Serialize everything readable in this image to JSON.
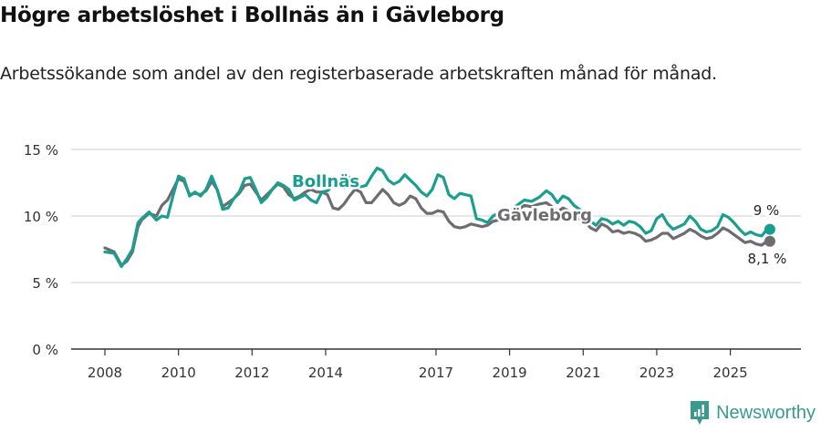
{
  "header": {
    "title": "Högre arbetslöshet i Bollnäs än i Gävleborg",
    "subtitle": "Arbetssökande som andel av den registerbaserade arbetskraften månad för månad."
  },
  "brand": {
    "name": "Newsworthy",
    "color": "#3a9a8e"
  },
  "chart_data": {
    "type": "line",
    "title": "Högre arbetslöshet i Bollnäs än i Gävleborg",
    "subtitle": "Arbetssökande som andel av den registerbaserade arbetskraften månad för månad.",
    "xlabel": "",
    "ylabel": "",
    "ylim": [
      0,
      15
    ],
    "y_ticks": [
      "0 %",
      "5 %",
      "10 %",
      "15 %"
    ],
    "y_tick_values": [
      0,
      5,
      10,
      15
    ],
    "x_ticks": [
      "2008",
      "2010",
      "2012",
      "2014",
      "2017",
      "2019",
      "2021",
      "2023",
      "2025"
    ],
    "x_tick_values": [
      2008,
      2010,
      2012,
      2014,
      2017,
      2019,
      2021,
      2023,
      2025
    ],
    "grid": true,
    "legend": "inline labels",
    "series": [
      {
        "name": "Bollnäs",
        "color": "#1a9e8f",
        "end_label": "9 %",
        "x": [
          2008.0,
          2008.25,
          2008.45,
          2008.6,
          2008.75,
          2008.9,
          2009.0,
          2009.2,
          2009.4,
          2009.55,
          2009.7,
          2009.85,
          2010.0,
          2010.15,
          2010.3,
          2010.45,
          2010.6,
          2010.75,
          2010.9,
          2011.05,
          2011.2,
          2011.35,
          2011.5,
          2011.65,
          2011.8,
          2011.95,
          2012.1,
          2012.25,
          2012.4,
          2012.55,
          2012.7,
          2012.85,
          2013.0,
          2013.15,
          2013.3,
          2013.45,
          2013.6,
          2013.75,
          2013.9,
          2014.05,
          2014.2,
          2014.35,
          2014.5,
          2014.65,
          2014.8,
          2014.95,
          2015.1,
          2015.25,
          2015.4,
          2015.55,
          2015.7,
          2015.85,
          2016.0,
          2016.15,
          2016.3,
          2016.45,
          2016.6,
          2016.75,
          2016.9,
          2017.05,
          2017.2,
          2017.35,
          2017.5,
          2017.65,
          2017.8,
          2017.95,
          2018.1,
          2018.25,
          2018.4,
          2018.55,
          2018.7,
          2018.85,
          2019.0,
          2019.2,
          2019.4,
          2019.6,
          2019.8,
          2020.0,
          2020.15,
          2020.3,
          2020.45,
          2020.6,
          2020.75,
          2020.9,
          2021.05,
          2021.2,
          2021.35,
          2021.5,
          2021.65,
          2021.8,
          2021.95,
          2022.1,
          2022.25,
          2022.4,
          2022.55,
          2022.7,
          2022.85,
          2023.0,
          2023.15,
          2023.3,
          2023.45,
          2023.6,
          2023.75,
          2023.9,
          2024.05,
          2024.2,
          2024.35,
          2024.5,
          2024.65,
          2024.8,
          2024.95,
          2025.1,
          2025.25,
          2025.4,
          2025.55,
          2025.7,
          2025.85,
          2026.0
        ],
        "values": [
          7.3,
          7.2,
          6.2,
          6.8,
          7.5,
          9.5,
          9.8,
          10.3,
          9.7,
          10.0,
          9.9,
          11.5,
          13.0,
          12.8,
          11.5,
          11.8,
          11.5,
          12.0,
          13.0,
          12.0,
          10.5,
          10.6,
          11.3,
          11.8,
          12.8,
          12.9,
          12.0,
          11.0,
          11.4,
          12.0,
          12.5,
          12.3,
          12.0,
          11.2,
          11.4,
          11.6,
          11.2,
          11.0,
          11.8,
          11.9,
          12.3,
          12.4,
          12.1,
          12.9,
          12.6,
          12.2,
          12.3,
          13.0,
          13.6,
          13.4,
          12.7,
          12.4,
          12.6,
          13.1,
          12.7,
          12.3,
          11.8,
          11.5,
          12.0,
          13.1,
          12.9,
          11.6,
          11.3,
          11.7,
          11.6,
          11.5,
          9.8,
          9.7,
          9.5,
          10.0,
          10.2,
          10.5,
          10.3,
          10.8,
          11.2,
          11.1,
          11.4,
          11.9,
          11.6,
          11.0,
          11.5,
          11.3,
          10.8,
          10.5,
          10.2,
          9.6,
          9.3,
          9.8,
          9.7,
          9.4,
          9.6,
          9.3,
          9.6,
          9.5,
          9.2,
          8.7,
          8.9,
          9.8,
          10.1,
          9.4,
          9.0,
          9.2,
          9.4,
          10.0,
          9.6,
          9.0,
          8.8,
          8.9,
          9.2,
          10.1,
          9.9,
          9.5,
          9.0,
          8.6,
          8.8,
          8.6,
          8.5,
          9.0
        ]
      },
      {
        "name": "Gävleborg",
        "color": "#6e6c71",
        "end_label": "8,1 %",
        "x": [
          2008.0,
          2008.25,
          2008.45,
          2008.6,
          2008.75,
          2008.9,
          2009.0,
          2009.2,
          2009.4,
          2009.55,
          2009.7,
          2009.85,
          2010.0,
          2010.15,
          2010.3,
          2010.45,
          2010.6,
          2010.75,
          2010.9,
          2011.05,
          2011.2,
          2011.35,
          2011.5,
          2011.65,
          2011.8,
          2011.95,
          2012.1,
          2012.25,
          2012.4,
          2012.55,
          2012.7,
          2012.85,
          2013.0,
          2013.15,
          2013.3,
          2013.45,
          2013.6,
          2013.75,
          2013.9,
          2014.05,
          2014.2,
          2014.35,
          2014.5,
          2014.65,
          2014.8,
          2014.95,
          2015.1,
          2015.25,
          2015.4,
          2015.55,
          2015.7,
          2015.85,
          2016.0,
          2016.15,
          2016.3,
          2016.45,
          2016.6,
          2016.75,
          2016.9,
          2017.05,
          2017.2,
          2017.35,
          2017.5,
          2017.65,
          2017.8,
          2017.95,
          2018.1,
          2018.25,
          2018.4,
          2018.55,
          2018.7,
          2018.85,
          2019.0,
          2019.2,
          2019.4,
          2019.6,
          2019.8,
          2020.0,
          2020.15,
          2020.3,
          2020.45,
          2020.6,
          2020.75,
          2020.9,
          2021.05,
          2021.2,
          2021.35,
          2021.5,
          2021.65,
          2021.8,
          2021.95,
          2022.1,
          2022.25,
          2022.4,
          2022.55,
          2022.7,
          2022.85,
          2023.0,
          2023.15,
          2023.3,
          2023.45,
          2023.6,
          2023.75,
          2023.9,
          2024.05,
          2024.2,
          2024.35,
          2024.5,
          2024.65,
          2024.8,
          2024.95,
          2025.1,
          2025.25,
          2025.4,
          2025.55,
          2025.7,
          2025.85,
          2026.0
        ],
        "values": [
          7.6,
          7.3,
          6.3,
          6.6,
          7.3,
          9.2,
          9.7,
          10.2,
          10.0,
          10.8,
          11.2,
          12.0,
          12.8,
          12.6,
          11.6,
          11.7,
          11.6,
          11.9,
          12.6,
          12.0,
          10.7,
          11.0,
          11.3,
          11.7,
          12.3,
          12.4,
          11.8,
          11.2,
          11.6,
          12.0,
          12.4,
          12.2,
          11.6,
          11.3,
          11.5,
          11.8,
          12.0,
          11.8,
          11.8,
          11.6,
          10.6,
          10.5,
          10.9,
          11.5,
          12.0,
          11.8,
          11.0,
          11.0,
          11.5,
          12.0,
          11.6,
          11.0,
          10.8,
          11.0,
          11.5,
          11.3,
          10.6,
          10.2,
          10.2,
          10.4,
          10.3,
          9.6,
          9.2,
          9.1,
          9.2,
          9.4,
          9.3,
          9.2,
          9.3,
          9.6,
          9.7,
          9.9,
          10.1,
          10.4,
          10.8,
          10.7,
          10.9,
          11.0,
          10.7,
          10.3,
          10.6,
          10.4,
          10.0,
          9.8,
          9.6,
          9.1,
          8.9,
          9.4,
          9.2,
          8.8,
          8.9,
          8.7,
          8.8,
          8.7,
          8.5,
          8.1,
          8.2,
          8.4,
          8.7,
          8.7,
          8.3,
          8.5,
          8.7,
          9.0,
          8.8,
          8.5,
          8.3,
          8.4,
          8.7,
          9.1,
          8.9,
          8.6,
          8.3,
          8.0,
          8.1,
          7.9,
          7.8,
          8.1
        ]
      }
    ],
    "annotations": [
      {
        "text": "Bollnäs",
        "series": "Bollnäs"
      },
      {
        "text": "Gävleborg",
        "series": "Gävleborg"
      },
      {
        "text": "9 %",
        "series": "Bollnäs",
        "position": "end"
      },
      {
        "text": "8,1 %",
        "series": "Gävleborg",
        "position": "end"
      }
    ]
  }
}
